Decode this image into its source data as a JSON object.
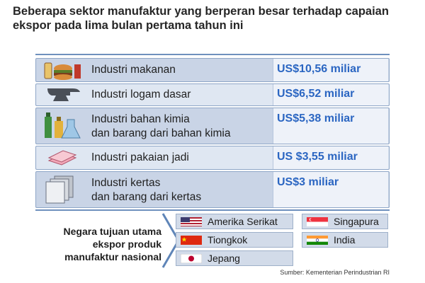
{
  "header": {
    "title": "Beberapa sektor manufaktur yang berperan besar terhadap capaian ekspor pada lima bulan pertama tahun ini"
  },
  "chart_data": {
    "type": "table",
    "title": "Beberapa sektor manufaktur yang berperan besar terhadap capaian ekspor pada lima bulan pertama tahun ini",
    "unit": "US$ miliar",
    "rows": [
      {
        "sector_line1": "Industri makanan",
        "sector_line2": "",
        "value": 10.56,
        "value_label": "US$10,56 miliar",
        "icon": "food-icon"
      },
      {
        "sector_line1": "Industri logam dasar",
        "sector_line2": "",
        "value": 6.52,
        "value_label": "US$6,52 miliar",
        "icon": "anvil-icon"
      },
      {
        "sector_line1": "Industri bahan kimia",
        "sector_line2": "dan barang dari bahan kimia",
        "value": 5.38,
        "value_label": "US$5,38 miliar",
        "icon": "chemical-bottles-icon"
      },
      {
        "sector_line1": "Industri pakaian jadi",
        "sector_line2": "",
        "value": 3.55,
        "value_label": "US $3,55 miliar",
        "icon": "folded-clothes-icon"
      },
      {
        "sector_line1": "Industri kertas",
        "sector_line2": "dan barang dari kertas",
        "value": 3,
        "value_label": "US$3 miliar",
        "icon": "paper-stack-icon"
      }
    ]
  },
  "destinations": {
    "label_line1": "Negara tujuan utama",
    "label_line2": "ekspor produk",
    "label_line3": "manufaktur nasional",
    "countries": [
      {
        "name": "Amerika Serikat",
        "flag": "usa-flag-icon"
      },
      {
        "name": "Tiongkok",
        "flag": "china-flag-icon"
      },
      {
        "name": "Jepang",
        "flag": "japan-flag-icon"
      },
      {
        "name": "Singapura",
        "flag": "singapore-flag-icon"
      },
      {
        "name": "India",
        "flag": "india-flag-icon"
      }
    ]
  },
  "source": "Sumber: Kementerian Perindustrian RI",
  "colors": {
    "value_text": "#2b66c2",
    "row_shade": "#c9d4e6",
    "row_light": "#dfe7f2",
    "rule": "#6f90bd"
  }
}
